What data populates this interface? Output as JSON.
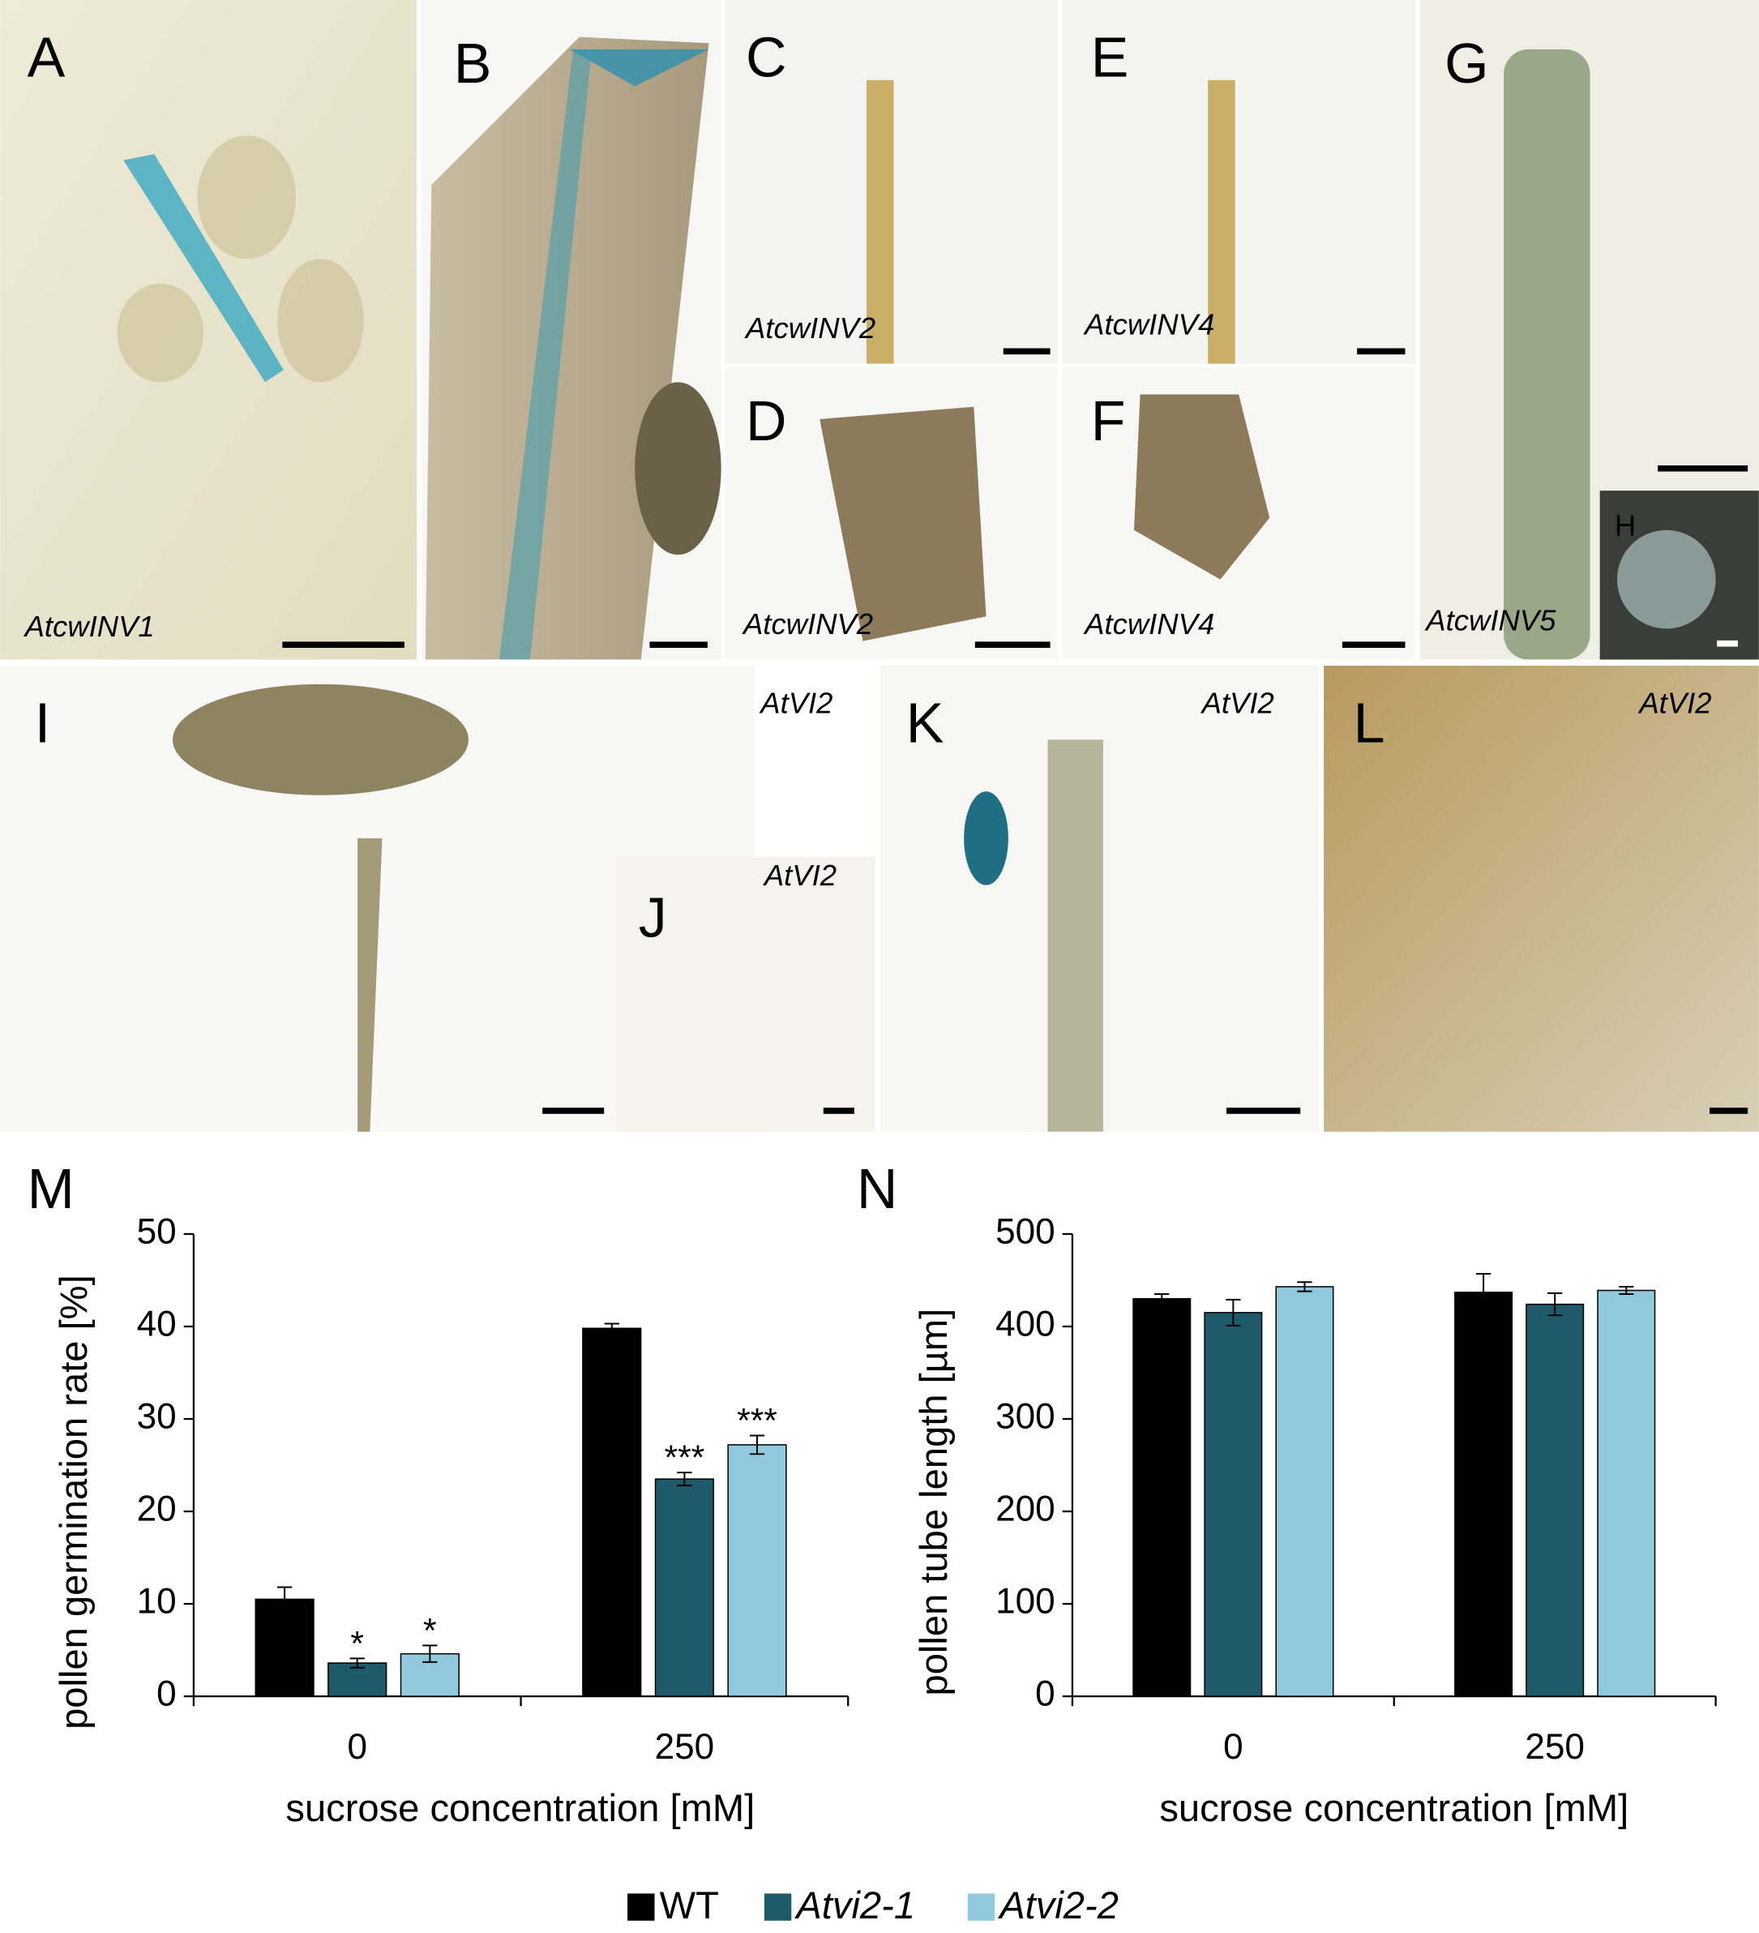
{
  "panels": [
    {
      "label": "A",
      "gene": "AtcwINV1"
    },
    {
      "label": "B"
    },
    {
      "label": "C",
      "gene": "AtcwINV2"
    },
    {
      "label": "D",
      "gene": "AtcwINV2"
    },
    {
      "label": "E",
      "gene": "AtcwINV4"
    },
    {
      "label": "F",
      "gene": "AtcwINV4"
    },
    {
      "label": "G",
      "gene": "AtcwINV5"
    },
    {
      "label": "H"
    },
    {
      "label": "I",
      "gene": "AtVI2"
    },
    {
      "label": "J",
      "gene": "AtVI2"
    },
    {
      "label": "K",
      "gene": "AtVI2"
    },
    {
      "label": "L",
      "gene": "AtVI2"
    }
  ],
  "chart_data": [
    {
      "type": "bar",
      "panel": "M",
      "y_label": "pollen germination rate [%]",
      "x_label": "sucrose concentration [mM]",
      "categories": [
        "0",
        "250"
      ],
      "ylim": [
        0,
        50
      ],
      "yticks": [
        0,
        10,
        20,
        30,
        40,
        50
      ],
      "series": [
        {
          "name": "WT",
          "color": "#000000",
          "values": [
            10.5,
            39.8
          ],
          "errors": [
            1.3,
            0.5
          ]
        },
        {
          "name": "Atvi2-1",
          "color": "#1f5a6b",
          "values": [
            3.6,
            23.5
          ],
          "errors": [
            0.5,
            0.7
          ],
          "significance": [
            "*",
            "***"
          ]
        },
        {
          "name": "Atvi2-2",
          "color": "#92cadd",
          "values": [
            4.6,
            27.2
          ],
          "errors": [
            0.9,
            1.0
          ],
          "significance": [
            "*",
            "***"
          ]
        }
      ]
    },
    {
      "type": "bar",
      "panel": "N",
      "y_label": "pollen tube length [µm]",
      "x_label": "sucrose concentration [mM]",
      "categories": [
        "0",
        "250"
      ],
      "ylim": [
        0,
        500
      ],
      "yticks": [
        0,
        100,
        200,
        300,
        400,
        500
      ],
      "series": [
        {
          "color": "#000000",
          "values": [
            430,
            437
          ],
          "errors": [
            5,
            20
          ]
        },
        {
          "color": "#1f5a6b",
          "values": [
            415,
            424
          ],
          "errors": [
            14,
            12
          ]
        },
        {
          "color": "#92cadd",
          "values": [
            443,
            439
          ],
          "errors": [
            5,
            4
          ]
        }
      ]
    }
  ]
}
